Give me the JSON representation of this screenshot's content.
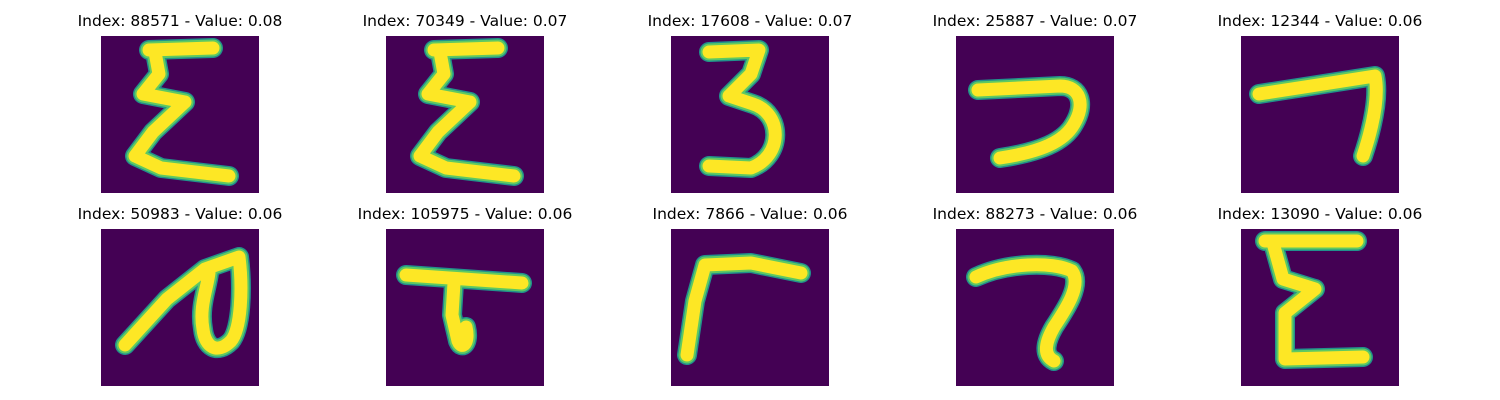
{
  "colors": {
    "background": "#440154",
    "edge": "#21918c",
    "mid": "#5ec962",
    "stroke": "#fde725"
  },
  "panels": [
    {
      "title": "Index: 88571 - Value: 0.08",
      "glyph": "sigma-e"
    },
    {
      "title": "Index: 70349 - Value: 0.07",
      "glyph": "sigma-e"
    },
    {
      "title": "Index: 17608 - Value: 0.07",
      "glyph": "three"
    },
    {
      "title": "Index: 25887 - Value: 0.07",
      "glyph": "reverse-c"
    },
    {
      "title": "Index: 12344 - Value: 0.06",
      "glyph": "seven"
    },
    {
      "title": "Index: 50983 - Value: 0.06",
      "glyph": "loop"
    },
    {
      "title": "Index: 105975 - Value: 0.06",
      "glyph": "tau"
    },
    {
      "title": "Index: 7866 - Value: 0.06",
      "glyph": "gamma"
    },
    {
      "title": "Index: 88273 - Value: 0.06",
      "glyph": "question"
    },
    {
      "title": "Index: 13090 - Value: 0.06",
      "glyph": "e"
    }
  ]
}
